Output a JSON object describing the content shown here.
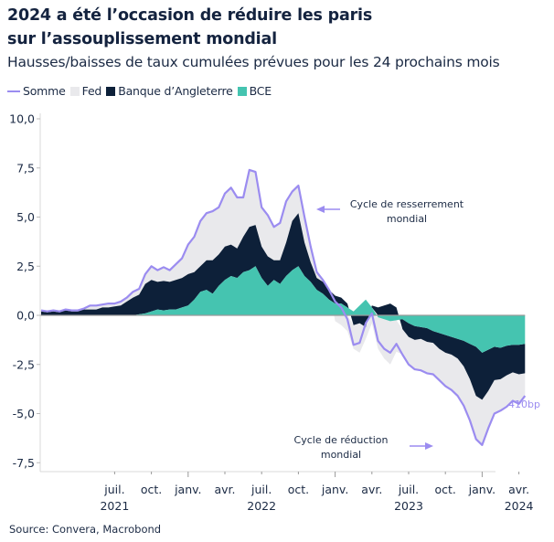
{
  "header": {
    "title_line1": "2024 a été l’occasion de réduire les paris",
    "title_line2": "sur l’assouplissement mondial",
    "subtitle": "Hausses/baisses de taux cumulées prévues pour les 24 prochains mois"
  },
  "source": "Source: Convera, Macrobond",
  "chart_data": {
    "type": "area",
    "title": "2024 a été l’occasion de réduire les paris sur l’assouplissement mondial",
    "subtitle": "Hausses/baisses de taux cumulées prévues pour les 24 prochains mois",
    "xlabel": "",
    "ylabel": "",
    "ylim": [
      -7.5,
      10.0
    ],
    "yticks": [
      10.0,
      7.5,
      5.0,
      2.5,
      0.0,
      -2.5,
      -5.0,
      -7.5
    ],
    "ytick_labels": [
      "10,0",
      "7,5",
      "5,0",
      "2,5",
      "0,0",
      "-2,5",
      "-5,0",
      "-7,5"
    ],
    "xrange": [
      "2021-01",
      "2024-04-15"
    ],
    "xticks": [
      {
        "label": "juil.",
        "date": "2021-07",
        "year": "2021"
      },
      {
        "label": "oct.",
        "date": "2021-10",
        "year": ""
      },
      {
        "label": "janv.",
        "date": "2022-01",
        "year": ""
      },
      {
        "label": "avr.",
        "date": "2022-04",
        "year": ""
      },
      {
        "label": "juil.",
        "date": "2022-07",
        "year": "2022"
      },
      {
        "label": "oct.",
        "date": "2022-10",
        "year": ""
      },
      {
        "label": "janv.",
        "date": "2023-01",
        "year": ""
      },
      {
        "label": "avr.",
        "date": "2023-04",
        "year": ""
      },
      {
        "label": "juil.",
        "date": "2023-07",
        "year": "2023"
      },
      {
        "label": "oct.",
        "date": "2023-10",
        "year": ""
      },
      {
        "label": "janv.",
        "date": "2024-01",
        "year": ""
      },
      {
        "label": "avr.",
        "date": "2024-04",
        "year": "2024"
      }
    ],
    "grid": false,
    "legend_position": "top-left",
    "x_unit": "months since 2021-01 (half-month steps)",
    "x": [
      0,
      0.5,
      1,
      1.5,
      2,
      2.5,
      3,
      3.5,
      4,
      4.5,
      5,
      5.5,
      6,
      6.5,
      7,
      7.5,
      8,
      8.5,
      9,
      9.5,
      10,
      10.5,
      11,
      11.5,
      12,
      12.5,
      13,
      13.5,
      14,
      14.5,
      15,
      15.5,
      16,
      16.5,
      17,
      17.5,
      18,
      18.5,
      19,
      19.5,
      20,
      20.5,
      21,
      21.5,
      22,
      22.5,
      23,
      23.5,
      24,
      24.5,
      25,
      25.5,
      26,
      26.5,
      27,
      27.5,
      28,
      28.5,
      29,
      29.5,
      30,
      30.5,
      31,
      31.5,
      32,
      32.5,
      33,
      33.5,
      34,
      34.5,
      35,
      35.5,
      36,
      36.5,
      37,
      37.5,
      38,
      38.5,
      39,
      39.5
    ],
    "series": [
      {
        "name": "BCE",
        "color": "#45c4b0",
        "values": [
          0,
          0,
          0,
          0,
          0,
          0,
          0,
          0,
          0,
          0,
          0,
          0,
          0,
          0,
          0,
          0,
          0.05,
          0.1,
          0.2,
          0.3,
          0.25,
          0.3,
          0.3,
          0.4,
          0.5,
          0.8,
          1.2,
          1.3,
          1.1,
          1.5,
          1.8,
          2.0,
          1.9,
          2.2,
          2.3,
          2.5,
          1.9,
          1.5,
          1.8,
          1.6,
          2.0,
          2.3,
          2.5,
          2.0,
          1.7,
          1.3,
          1.1,
          0.8,
          0.6,
          0.6,
          0.4,
          0.2,
          0.5,
          0.8,
          0.4,
          -0.1,
          -0.2,
          -0.3,
          -0.25,
          -0.2,
          -0.4,
          -0.55,
          -0.6,
          -0.65,
          -0.8,
          -0.9,
          -1.0,
          -1.1,
          -1.2,
          -1.3,
          -1.45,
          -1.6,
          -1.9,
          -1.75,
          -1.6,
          -1.65,
          -1.55,
          -1.5,
          -1.5,
          -1.45
        ]
      },
      {
        "name": "Banque d’Angleterre",
        "color": "#0d2039",
        "values": [
          0.2,
          0.15,
          0.2,
          0.15,
          0.25,
          0.2,
          0.2,
          0.3,
          0.3,
          0.3,
          0.4,
          0.4,
          0.45,
          0.5,
          0.7,
          0.9,
          1.0,
          1.5,
          1.6,
          1.4,
          1.5,
          1.4,
          1.5,
          1.5,
          1.6,
          1.4,
          1.3,
          1.5,
          1.7,
          1.6,
          1.7,
          1.6,
          1.5,
          1.8,
          2.2,
          2.1,
          1.6,
          1.5,
          1.0,
          1.2,
          1.7,
          2.5,
          2.7,
          1.7,
          1.0,
          0.6,
          0.6,
          0.5,
          0.4,
          0.3,
          0.2,
          -0.5,
          -0.4,
          -0.6,
          0.1,
          0.4,
          0.5,
          0.6,
          0.4,
          -0.5,
          -0.7,
          -0.7,
          -0.6,
          -0.7,
          -0.6,
          -0.8,
          -0.9,
          -0.9,
          -1.0,
          -1.3,
          -1.8,
          -2.5,
          -2.4,
          -2.1,
          -1.7,
          -1.6,
          -1.5,
          -1.4,
          -1.5,
          -1.5
        ]
      },
      {
        "name": "Fed",
        "color": "#e9e9ec",
        "values": [
          0.05,
          0.05,
          0.05,
          0.05,
          0.05,
          0.05,
          0.05,
          0.05,
          0.2,
          0.2,
          0.15,
          0.2,
          0.15,
          0.2,
          0.2,
          0.3,
          0.3,
          0.5,
          0.7,
          0.6,
          0.7,
          0.6,
          0.8,
          1.0,
          1.5,
          1.8,
          2.3,
          2.4,
          2.5,
          2.4,
          2.7,
          2.9,
          2.6,
          2.0,
          2.9,
          2.7,
          2.0,
          2.1,
          1.7,
          1.9,
          2.1,
          1.5,
          1.4,
          1.3,
          0.8,
          0.3,
          0.1,
          0.0,
          -0.3,
          -0.5,
          -0.8,
          -1.2,
          -1.5,
          -0.6,
          -0.4,
          -1.6,
          -2.0,
          -2.2,
          -1.6,
          -1.3,
          -1.4,
          -1.5,
          -1.6,
          -1.6,
          -1.6,
          -1.6,
          -1.7,
          -1.8,
          -1.9,
          -2.0,
          -2.1,
          -2.2,
          -2.3,
          -1.9,
          -1.7,
          -1.6,
          -1.6,
          -1.4,
          -1.5,
          -1.1
        ]
      },
      {
        "name": "Somme",
        "color": "#9b8cf0",
        "values": [
          0.25,
          0.2,
          0.25,
          0.2,
          0.3,
          0.25,
          0.25,
          0.35,
          0.5,
          0.5,
          0.55,
          0.6,
          0.6,
          0.7,
          0.9,
          1.2,
          1.35,
          2.1,
          2.5,
          2.3,
          2.45,
          2.3,
          2.6,
          2.9,
          3.6,
          4.0,
          4.8,
          5.2,
          5.3,
          5.5,
          6.2,
          6.5,
          6.0,
          6.0,
          7.4,
          7.3,
          5.5,
          5.1,
          4.5,
          4.7,
          5.8,
          6.3,
          6.6,
          5.0,
          3.5,
          2.2,
          1.8,
          1.3,
          0.7,
          0.4,
          -0.2,
          -1.5,
          -1.4,
          -0.4,
          0.1,
          -1.3,
          -1.7,
          -1.9,
          -1.45,
          -2.0,
          -2.5,
          -2.75,
          -2.8,
          -2.95,
          -3.0,
          -3.3,
          -3.6,
          -3.8,
          -4.1,
          -4.6,
          -5.35,
          -6.3,
          -6.6,
          -5.75,
          -5.0,
          -4.85,
          -4.65,
          -4.35,
          -4.5,
          -4.1
        ]
      }
    ],
    "annotations": [
      {
        "text_line1": "Cycle de resserrement",
        "text_line2": "mondial",
        "arrow": "left"
      },
      {
        "text_line1": "Cycle de réduction",
        "text_line2": "mondial",
        "arrow": "right"
      }
    ],
    "end_label": "410bp"
  },
  "legend": {
    "items": [
      {
        "label": "Somme",
        "color": "#9b8cf0",
        "shape": "line"
      },
      {
        "label": "Fed",
        "color": "#e9e9ec",
        "shape": "box"
      },
      {
        "label": "Banque d’Angleterre",
        "color": "#0d2039",
        "shape": "box"
      },
      {
        "label": "BCE",
        "color": "#45c4b0",
        "shape": "box"
      }
    ]
  }
}
